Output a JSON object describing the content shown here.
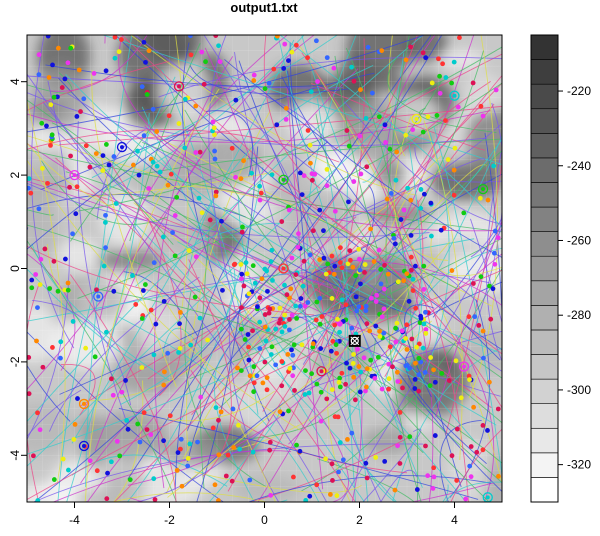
{
  "chart_data": [
    {
      "type": "scatter",
      "title": "output1.txt",
      "xlabel": "",
      "ylabel": "",
      "xlim": [
        -5,
        5
      ],
      "ylim": [
        -5,
        5
      ],
      "x_ticks": [
        -4,
        -2,
        0,
        2,
        4
      ],
      "y_ticks": [
        -4,
        -2,
        0,
        2,
        4
      ],
      "x_tick_labels": [
        "-4",
        "-2",
        "0",
        "2",
        "4"
      ],
      "y_tick_labels": [
        "-4",
        "-2",
        "0",
        "2",
        "4"
      ],
      "background": "grayscale objective-function heatmap",
      "overlay": "many random colored trajectory lines and points",
      "best_marker": {
        "x": 1.9,
        "y": -1.55
      },
      "circled_points": [
        {
          "x": -3.0,
          "y": 2.6
        },
        {
          "x": -1.8,
          "y": 3.9
        },
        {
          "x": -4.0,
          "y": 2.0
        },
        {
          "x": 0.4,
          "y": 1.9
        },
        {
          "x": 4.0,
          "y": 3.7
        },
        {
          "x": 3.2,
          "y": 3.2
        },
        {
          "x": 0.4,
          "y": 0.0
        },
        {
          "x": -3.5,
          "y": -0.6
        },
        {
          "x": -3.8,
          "y": -2.9
        },
        {
          "x": -3.8,
          "y": -3.8
        },
        {
          "x": 1.2,
          "y": -2.2
        },
        {
          "x": 4.2,
          "y": -2.1
        },
        {
          "x": 4.6,
          "y": 1.7
        },
        {
          "x": 4.7,
          "y": -4.9
        }
      ],
      "point_colors": [
        "#1111dd",
        "#dd1155",
        "#ee33ee",
        "#11cc11",
        "#00cccc",
        "#eeee11",
        "#ff3333",
        "#3366ff",
        "#ff8800"
      ],
      "line_colors": [
        "#3344dd",
        "#cc33cc",
        "#7755ee",
        "#ee4488",
        "#44bb66",
        "#33cccc",
        "#dddd44"
      ],
      "grid": false,
      "legend": "none"
    },
    {
      "type": "heatmap",
      "role": "colorbar",
      "range": [
        -330,
        -205
      ],
      "levels": 19,
      "ticks": [
        -220,
        -240,
        -260,
        -280,
        -300,
        -320
      ],
      "tick_labels": [
        "-220",
        "-240",
        "-260",
        "-280",
        "-300",
        "-320"
      ],
      "color_low": "#ffffff",
      "color_high": "#333333"
    }
  ]
}
